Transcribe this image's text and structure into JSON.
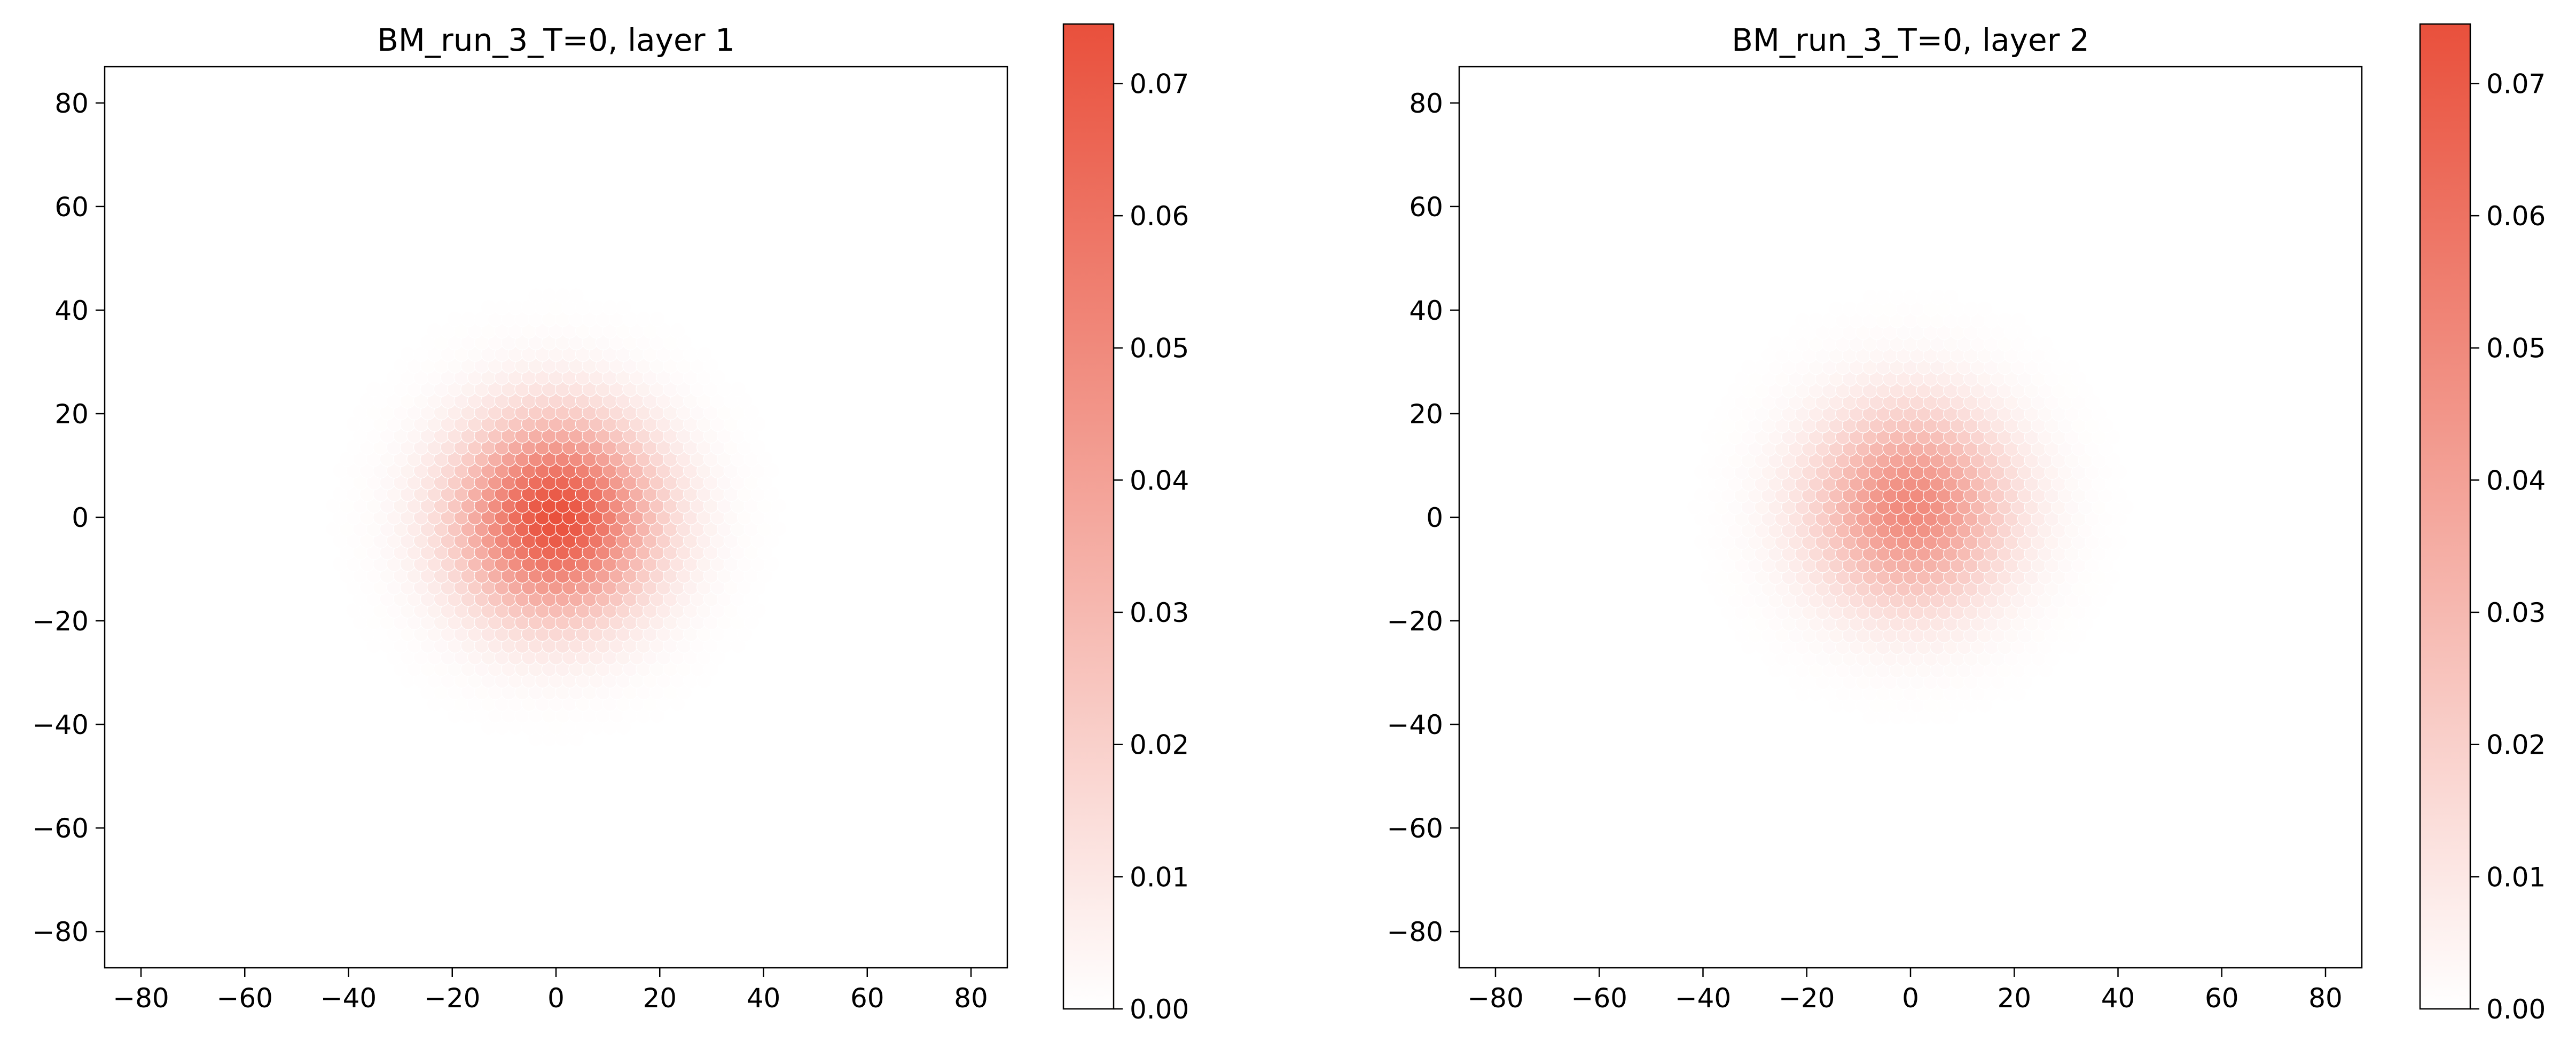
{
  "figure": {
    "background": "#ffffff"
  },
  "chart_data": [
    {
      "type": "heatmap",
      "title": "BM_run_3_T=0, layer 1",
      "xlabel": "",
      "ylabel": "",
      "xlim": [
        -87,
        87
      ],
      "ylim": [
        -87,
        87
      ],
      "x_ticks": [
        -80,
        -60,
        -40,
        -20,
        0,
        20,
        40,
        60,
        80
      ],
      "y_ticks": [
        -80,
        -60,
        -40,
        -20,
        0,
        20,
        40,
        60,
        80
      ],
      "grid": false,
      "colormap": {
        "low": "#ffffff",
        "high": "#e9503c"
      },
      "colorbar": {
        "range": [
          0,
          0.0745
        ],
        "ticks": [
          0.0,
          0.01,
          0.02,
          0.03,
          0.04,
          0.05,
          0.06,
          0.07
        ],
        "tick_labels": [
          "0.00",
          "0.01",
          "0.02",
          "0.03",
          "0.04",
          "0.05",
          "0.06",
          "0.07"
        ]
      },
      "distribution": {
        "center": [
          0,
          0
        ],
        "peak": 0.074,
        "sigma": 13,
        "lattice": "hexagonal"
      }
    },
    {
      "type": "heatmap",
      "title": "BM_run_3_T=0, layer 2",
      "xlabel": "",
      "ylabel": "",
      "xlim": [
        -87,
        87
      ],
      "ylim": [
        -87,
        87
      ],
      "x_ticks": [
        -80,
        -60,
        -40,
        -20,
        0,
        20,
        40,
        60,
        80
      ],
      "y_ticks": [
        -80,
        -60,
        -40,
        -20,
        0,
        20,
        40,
        60,
        80
      ],
      "grid": false,
      "colormap": {
        "low": "#ffffff",
        "high": "#e9503c"
      },
      "colorbar": {
        "range": [
          0,
          0.0745
        ],
        "ticks": [
          0.0,
          0.01,
          0.02,
          0.03,
          0.04,
          0.05,
          0.06,
          0.07
        ],
        "tick_labels": [
          "0.00",
          "0.01",
          "0.02",
          "0.03",
          "0.04",
          "0.05",
          "0.06",
          "0.07"
        ]
      },
      "distribution": {
        "center": [
          0,
          2
        ],
        "peak": 0.05,
        "sigma": 13,
        "lattice": "hexagonal"
      }
    }
  ]
}
